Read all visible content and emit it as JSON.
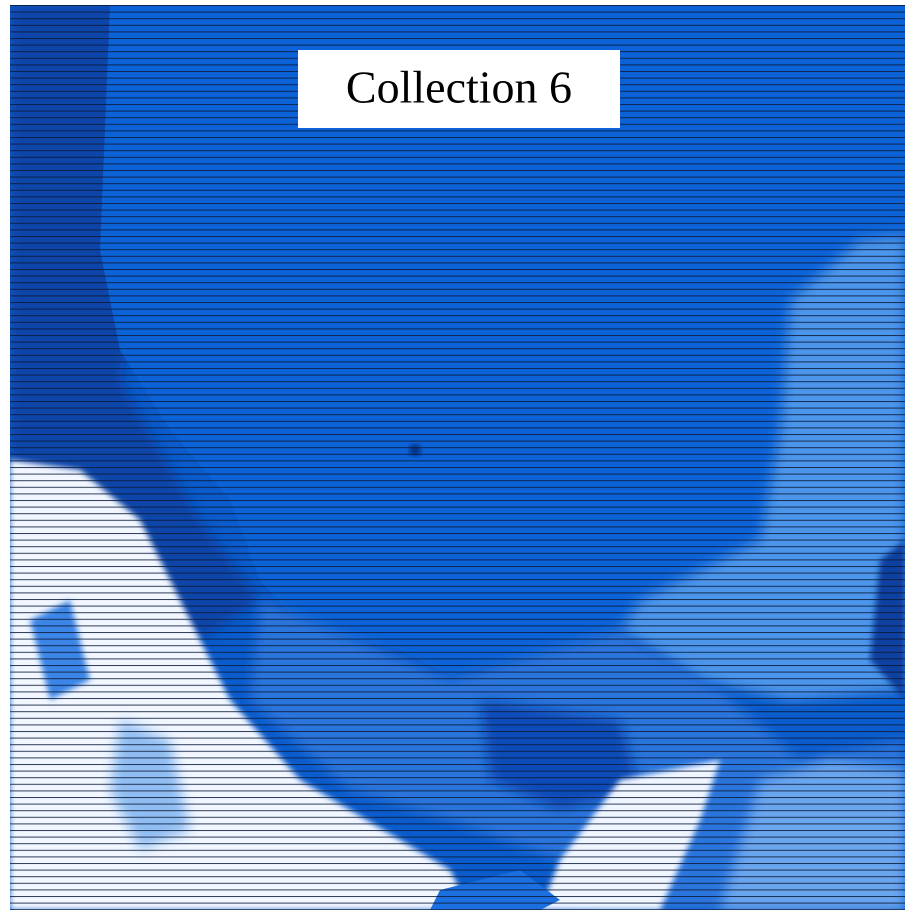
{
  "image": {
    "label": "Collection 6"
  }
}
